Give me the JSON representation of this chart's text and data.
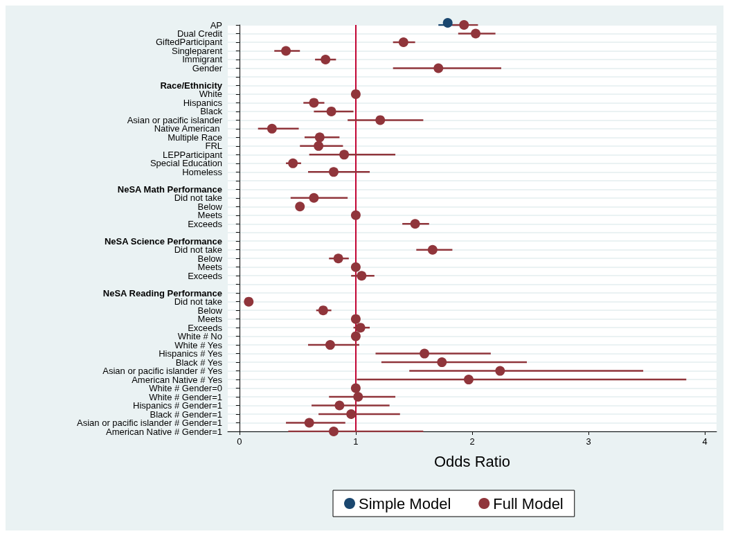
{
  "chart_data": {
    "type": "scatter",
    "xlabel": "Odds Ratio",
    "orientation": "horizontal",
    "categories": [
      "AP",
      "Dual Credit",
      "GiftedParticipant",
      "Singleparent",
      "Immigrant",
      "Gender",
      null,
      "Race/Ethnicity",
      "White",
      "Hispanics",
      "Black",
      "Asian or pacific islander",
      "Native American ",
      "Multiple Race",
      "FRL",
      "LEPParticipant",
      "Special Education",
      "Homeless",
      null,
      "NeSA Math Performance",
      "Did not take",
      "Below",
      "Meets",
      "Exceeds",
      null,
      "NeSA Science Performance",
      "Did not take",
      "Below",
      "Meets",
      "Exceeds",
      null,
      "NeSA Reading Performance",
      "Did not take",
      "Below",
      "Meets",
      "Exceeds",
      "White # No",
      "White # Yes",
      "Hispanics # Yes",
      "Black # Yes",
      "Asian or pacific islander # Yes",
      "American Native # Yes",
      "White # Gender=0",
      "White # Gender=1",
      "Hispanics # Gender=1",
      "Black # Gender=1",
      "Asian or pacific islander # Gender=1",
      "American Native # Gender=1"
    ],
    "series": [
      {
        "name": "Simple Model",
        "color": "#1a476f",
        "values": [
          1.79,
          null,
          null,
          null,
          null,
          null,
          null,
          null,
          null,
          null,
          null,
          null,
          null,
          null,
          null,
          null,
          null,
          null,
          null,
          null,
          null,
          null,
          null,
          null,
          null,
          null,
          null,
          null,
          null,
          null,
          null,
          null,
          null,
          null,
          null,
          null,
          null,
          null,
          null,
          null,
          null,
          null,
          null,
          null,
          null,
          null,
          null,
          null
        ],
        "errors": [
          [
            1.71,
            1.89
          ],
          null,
          null,
          null,
          null,
          null,
          null,
          null,
          null,
          null,
          null,
          null,
          null,
          null,
          null,
          null,
          null,
          null,
          null,
          null,
          null,
          null,
          null,
          null,
          null,
          null,
          null,
          null,
          null,
          null,
          null,
          null,
          null,
          null,
          null,
          null,
          null,
          null,
          null,
          null,
          null,
          null,
          null,
          null,
          null,
          null,
          null,
          null
        ]
      },
      {
        "name": "Full Model",
        "color": "#90353b",
        "values": [
          1.93,
          2.03,
          1.41,
          0.4,
          0.74,
          1.71,
          null,
          null,
          1.0,
          0.64,
          0.79,
          1.21,
          0.28,
          0.69,
          0.68,
          0.9,
          0.46,
          0.81,
          null,
          null,
          0.64,
          0.52,
          1.0,
          1.51,
          null,
          null,
          1.66,
          0.85,
          1.0,
          1.05,
          null,
          null,
          0.08,
          0.72,
          1.0,
          1.04,
          1.0,
          0.78,
          1.59,
          1.74,
          2.24,
          1.97,
          1.0,
          1.02,
          0.86,
          0.96,
          0.6,
          0.81
        ],
        "errors": [
          [
            1.83,
            2.05
          ],
          [
            1.88,
            2.2
          ],
          [
            1.32,
            1.51
          ],
          [
            0.3,
            0.52
          ],
          [
            0.65,
            0.83
          ],
          [
            1.32,
            2.25
          ],
          null,
          null,
          null,
          [
            0.55,
            0.73
          ],
          [
            0.64,
            0.98
          ],
          [
            0.93,
            1.58
          ],
          [
            0.16,
            0.51
          ],
          [
            0.56,
            0.86
          ],
          [
            0.52,
            0.89
          ],
          [
            0.6,
            1.34
          ],
          [
            0.4,
            0.53
          ],
          [
            0.59,
            1.12
          ],
          null,
          null,
          [
            0.44,
            0.93
          ],
          [
            0.5,
            0.55
          ],
          null,
          [
            1.4,
            1.63
          ],
          null,
          null,
          [
            1.52,
            1.83
          ],
          [
            0.77,
            0.94
          ],
          null,
          [
            0.96,
            1.16
          ],
          null,
          null,
          null,
          [
            0.66,
            0.79
          ],
          null,
          [
            0.98,
            1.12
          ],
          null,
          [
            0.59,
            1.03
          ],
          [
            1.17,
            2.16
          ],
          [
            1.22,
            2.47
          ],
          [
            1.46,
            3.47
          ],
          [
            1.01,
            3.84
          ],
          null,
          [
            0.77,
            1.34
          ],
          [
            0.62,
            1.29
          ],
          [
            0.68,
            1.38
          ],
          [
            0.4,
            0.91
          ],
          [
            0.42,
            1.58
          ]
        ]
      }
    ],
    "xlim": [
      -0.1,
      4.1
    ],
    "xticks": [
      0,
      1,
      2,
      3,
      4
    ],
    "ref_lines": [
      {
        "axis": "x",
        "value": 1,
        "color": "#c10534"
      }
    ],
    "grid": "y",
    "legend": "bottom",
    "marker": "circle"
  }
}
